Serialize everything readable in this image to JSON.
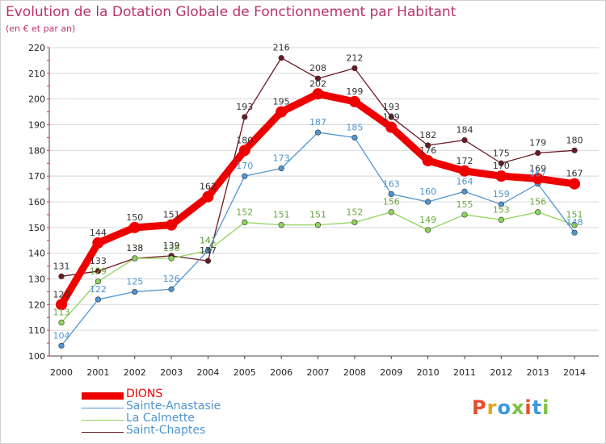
{
  "title": "Evolution de la Dotation Globale de Fonctionnement par Habitant",
  "subtitle": "(en € et par an)",
  "logo": {
    "text": "Proxiti",
    "colors": [
      "#e84c2b",
      "#e8a21e",
      "#3a9ad9",
      "#7cc242",
      "#e84c2b",
      "#3a9ad9",
      "#7cc242"
    ]
  },
  "colors": {
    "title": "#b8336a",
    "grid": "#d8d8d8",
    "axis": "#222222"
  },
  "chart_data": {
    "type": "line",
    "title": "Evolution de la Dotation Globale de Fonctionnement par Habitant",
    "subtitle": "(en € et par an)",
    "x": [
      "2000",
      "2001",
      "2002",
      "2003",
      "2004",
      "2005",
      "2006",
      "2007",
      "2008",
      "2009",
      "2010",
      "2011",
      "2012",
      "2013",
      "2014"
    ],
    "ylim": [
      100,
      220
    ],
    "yticks": [
      100,
      110,
      120,
      130,
      140,
      150,
      160,
      170,
      180,
      190,
      200,
      210,
      220
    ],
    "grid": true,
    "legend_position": "bottom-left",
    "series": [
      {
        "name": "DIONS",
        "color": "#ee0000",
        "values": [
          120,
          144,
          150,
          151,
          162,
          180,
          195,
          202,
          199,
          189,
          176,
          172,
          170,
          169,
          167
        ]
      },
      {
        "name": "Sainte-Anastasie",
        "color": "#4f95cf",
        "values": [
          104,
          122,
          125,
          126,
          141,
          170,
          173,
          187,
          185,
          163,
          160,
          164,
          159,
          167,
          148
        ]
      },
      {
        "name": "La Calmette",
        "color": "#8ed45a",
        "values": [
          113,
          129,
          138,
          138,
          141,
          152,
          151,
          151,
          152,
          156,
          149,
          155,
          153,
          156,
          151
        ]
      },
      {
        "name": "Saint-Chaptes",
        "color": "#6b1a23",
        "values": [
          131,
          133,
          138,
          139,
          137,
          193,
          216,
          208,
          212,
          193,
          182,
          184,
          175,
          179,
          180
        ]
      }
    ]
  }
}
